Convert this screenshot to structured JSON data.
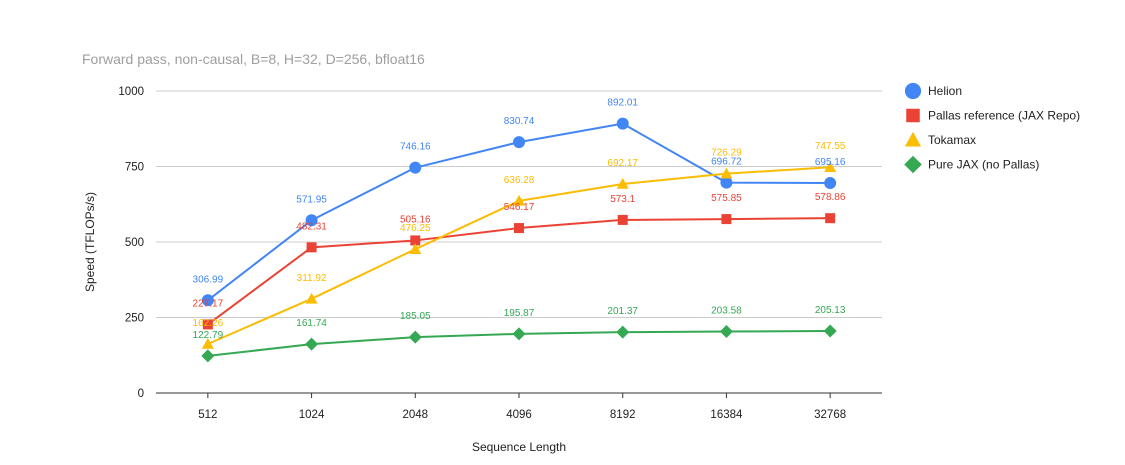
{
  "chart_data": {
    "type": "line",
    "title": "Forward pass, non-causal, B=8, H=32, D=256, bfloat16",
    "xlabel": "Sequence Length",
    "ylabel": "Speed (TFLOPs/s)",
    "categories": [
      "512",
      "1024",
      "2048",
      "4096",
      "8192",
      "16384",
      "32768"
    ],
    "ylim": [
      0,
      1000
    ],
    "yticks": [
      0,
      250,
      500,
      750,
      1000
    ],
    "grid": true,
    "legend_position": "right",
    "series": [
      {
        "name": "Helion",
        "color": "#4285f4",
        "marker": "circle",
        "values": [
          306.99,
          571.95,
          746.16,
          830.74,
          892.01,
          696.72,
          695.16
        ]
      },
      {
        "name": "Pallas reference (JAX Repo)",
        "color": "#ea4335",
        "marker": "square",
        "values": [
          227.17,
          482.31,
          505.16,
          546.17,
          573.1,
          575.85,
          578.86
        ]
      },
      {
        "name": "Tokamax",
        "color": "#fbbc04",
        "marker": "triangle",
        "values": [
          162.26,
          311.92,
          476.25,
          636.28,
          692.17,
          726.29,
          747.55
        ]
      },
      {
        "name": "Pure JAX (no Pallas)",
        "color": "#34a853",
        "marker": "diamond",
        "values": [
          122.79,
          161.74,
          185.05,
          195.87,
          201.37,
          203.58,
          205.13
        ]
      }
    ]
  }
}
